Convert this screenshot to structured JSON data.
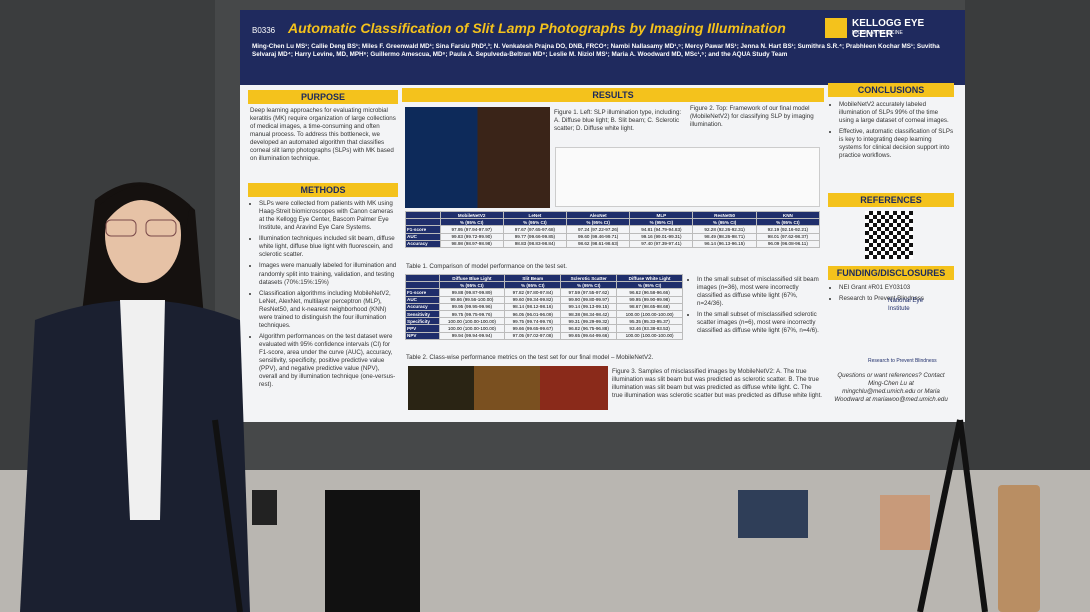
{
  "poster": {
    "id": "B0336",
    "title": "Automatic Classification of Slit Lamp Photographs by Imaging Illumination",
    "logo": "KELLOGG EYE CENTER",
    "logo_sub": "MICHIGAN MEDICINE",
    "authors": "Ming-Chen Lu MS¹; Callie Deng BS¹; Miles F. Greenwald MD¹; Sina Farsiu PhD²,³; N. Venkatesh Prajna DO, DNB, FRCO⁴; Nambi Nallasamy MD¹,⁵; Mercy Pawar MS¹; Jenna N. Hart BS¹; Sumithra S.R.⁴; Prabhleen Kochar MS¹; Suvitha Selvaraj MD⁴; Harry Levine, MD, MPH⁶; Guillermo Amescua, MD⁶; Paula A. Sepulveda-Beltran MD⁶; Leslie M. Niziol MS¹; Maria A. Woodward MD, MSc¹,⁵; and the AQUA Study Team",
    "purpose": {
      "heading": "PURPOSE",
      "text": "Deep learning approaches for evaluating microbial keratitis (MK) require organization of large collections of medical images, a time-consuming and often manual process. To address this bottleneck, we developed an automated algorithm that classifies corneal slit lamp photographs (SLPs) with MK based on illumination technique."
    },
    "methods": {
      "heading": "METHODS",
      "items": [
        "SLPs were collected from patients with MK using Haag-Streit biomicroscopes with Canon cameras at the Kellogg Eye Center, Bascom Palmer Eye Institute, and Aravind Eye Care Systems.",
        "Illumination techniques included slit beam, diffuse white light, diffuse blue light with fluorescein, and sclerotic scatter.",
        "Images were manually labeled for illumination and randomly split into training, validation, and testing datasets (70%:15%:15%)",
        "Classification algorithms including MobileNetV2, LeNet, AlexNet, multilayer perceptron (MLP), ResNet50, and k-nearest neighborhood (KNN) were trained to distinguish the four illumination techniques.",
        "Algorithm performances on the test dataset were evaluated with 95% confidence intervals (CI) for F1-score, area under the curve (AUC), accuracy, sensitivity, specificity, positive predictive value (PPV), and negative predictive value (NPV), overall and by illumination technique (one-versus-rest)."
      ]
    },
    "results": {
      "heading": "RESULTS",
      "figure1": "Figure 1. Left: SLP illumination type, including: A. Diffuse blue light; B. Slit beam; C. Sclerotic scatter; D. Diffuse white light.",
      "figure2": "Figure 2. Top: Framework of our final model (MobileNetV2) for classifying SLP by imaging illumination.",
      "table1": {
        "columns": [
          "",
          "MobileNetV2",
          "LeNet",
          "AlexNet",
          "MLP",
          "ResNet50",
          "KNN"
        ],
        "subheader": "% (95% CI)",
        "rows": [
          [
            "F1-score",
            "97.95 (97.94-97.97)",
            "97.67 (97.65-97.68)",
            "97.24 (97.22-97.26)",
            "94.81 (94.79-94.83)",
            "92.28 (92.26-92.31)",
            "92.19 (92.16-92.21)"
          ],
          [
            "AUC",
            "99.83 (99.72-99.90)",
            "99.77 (99.66-99.85)",
            "99.60 (99.46-99.71)",
            "99.16 (99.01-99.31)",
            "98.49 (98.26-98.71)",
            "98.01 (97.62-98.37)"
          ],
          [
            "Accuracy",
            "98.98 (98.97-98.98)",
            "98.83 (98.83-98.84)",
            "98.62 (98.61-98.63)",
            "97.40 (97.39-97.41)",
            "96.14 (96.13-96.15)",
            "96.09 (96.08-96.11)"
          ]
        ],
        "caption": "Table 1. Comparison of model performance on the test set."
      },
      "table2": {
        "columns": [
          "",
          "Diffuse Blue Light",
          "Slit Beam",
          "Sclerotic Scatter",
          "Diffuse White Light"
        ],
        "subheader": "% (95% CI)",
        "rows": [
          [
            "F1-score",
            "99.88 (99.87-99.89)",
            "97.82 (97.80-97.84)",
            "97.59 (97.55-97.62)",
            "96.62 (96.58-96.66)"
          ],
          [
            "AUC",
            "99.86 (99.56-100.00)",
            "99.60 (99.34-99.82)",
            "99.90 (99.80-99.97)",
            "99.95 (99.90-99.98)"
          ],
          [
            "Accuracy",
            "99.95 (99.95-99.96)",
            "98.14 (98.12-98.16)",
            "99.14 (99.13-99.15)",
            "98.67 (98.65-98.68)"
          ],
          [
            "Sensitivity",
            "99.75 (99.75-99.76)",
            "96.05 (96.01-96.09)",
            "98.38 (98.34-98.42)",
            "100.00 (100.00-100.00)"
          ],
          [
            "Specificity",
            "100.00 (100.00-100.00)",
            "99.75 (99.74-99.76)",
            "99.31 (99.29-99.32)",
            "95.35 (95.33-95.37)"
          ],
          [
            "PPV",
            "100.00 (100.00-100.00)",
            "99.66 (99.65-99.67)",
            "96.82 (96.75-96.88)",
            "93.46 (93.38-93.53)"
          ],
          [
            "NPV",
            "99.94 (99.94-99.94)",
            "97.05 (97.02-97.08)",
            "99.65 (99.64-99.66)",
            "100.00 (100.00-100.00)"
          ]
        ],
        "caption": "Table 2. Class-wise performance metrics on the test set for our final model – MobileNetV2."
      },
      "bullets": [
        "In the small subset of misclassified slit beam images (n=36), most were incorrectly classified as diffuse white light (67%, n=24/36).",
        "In the small subset of misclassified sclerotic scatter images (n=6), most were incorrectly classified as diffuse white light (67%, n=4/6)."
      ],
      "figure3": "Figure 3. Samples of misclassified images by MobileNetV2: A. The true illumination was slit beam but was predicted as sclerotic scatter. B. The true illumination was slit beam but was predicted as diffuse white light. C. The true illumination was sclerotic scatter but was predicted as diffuse white light."
    },
    "conclusions": {
      "heading": "CONCLUSIONS",
      "items": [
        "MobileNetV2 accurately labeled illumination of SLPs 99% of the time using a large dataset of corneal images.",
        "Effective, automatic classification of SLPs is key to integrating deep learning systems for clinical decision support into practice workflows."
      ]
    },
    "references": {
      "heading": "REFERENCES"
    },
    "funding": {
      "heading": "FUNDING/DISCLOSURES",
      "items": [
        "NEI Grant #R01 EY03103",
        "Research to Prevent Blindness"
      ],
      "nei": "National Eye Institute",
      "rpb": "Research to Prevent Blindness"
    },
    "contact": "Questions or want references? Contact Ming-Chen Lu at mingchlu@med.umich.edu or Maria Woodward at mariawoo@med.umich.edu"
  }
}
